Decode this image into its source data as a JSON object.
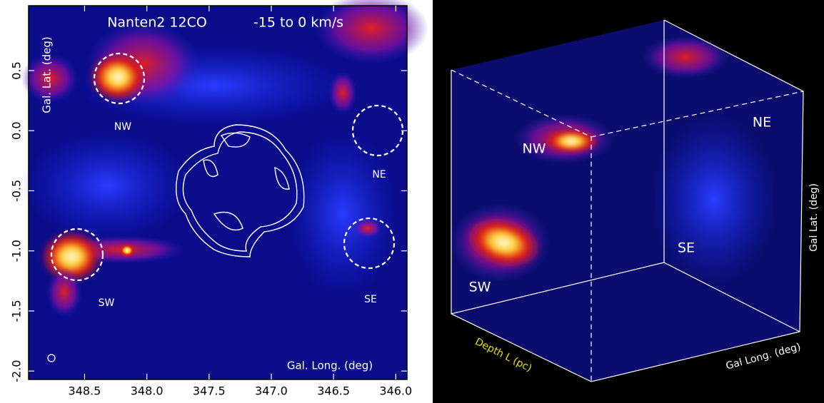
{
  "chart_data": [
    {
      "type": "map",
      "title": "Nanten2 12CO",
      "subtitle": "-15 to 0 km/s",
      "xlabel": "Gal. Long. (deg)",
      "ylabel": "Gal. Lat. (deg)",
      "xlim": [
        348.95,
        345.91
      ],
      "ylim": [
        -2.07,
        1.04
      ],
      "xticks": [
        348.5,
        {
          "value": 348,
          "label": "348.0"
        },
        347.5,
        {
          "value": 347,
          "label": "347.0"
        },
        346.5,
        {
          "value": 346,
          "label": "346.0"
        }
      ],
      "yticks": [
        0.5,
        {
          "value": 0,
          "label": "0.0"
        },
        -0.5,
        {
          "value": -1,
          "label": "-1.0"
        },
        -1.5,
        {
          "value": -2,
          "label": "-2.0"
        }
      ],
      "regions": [
        "NW",
        "NE",
        "SE",
        "SW"
      ]
    },
    {
      "type": "cube",
      "xlabel": "Gal Long. (deg)",
      "ylabel": "Gal Lat. (deg)",
      "zlabel": "Depth L (pc)",
      "regions": [
        "NW",
        "NE",
        "SE",
        "SW"
      ]
    }
  ]
}
